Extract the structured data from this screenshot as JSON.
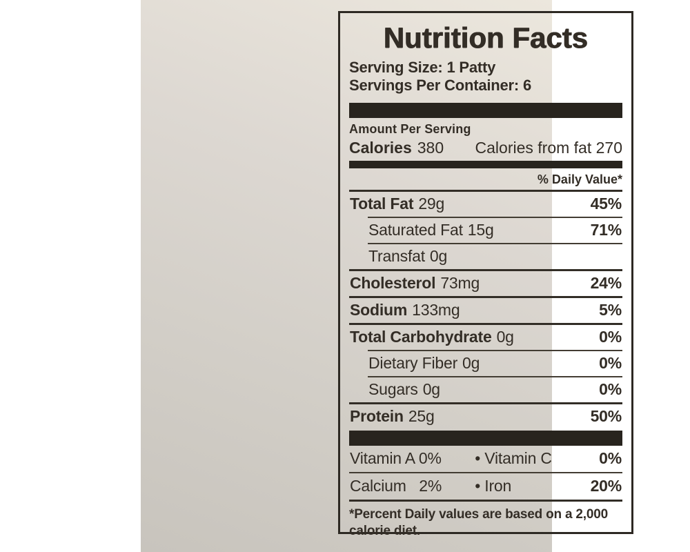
{
  "colors": {
    "paper_light": "#ece7dd",
    "paper_dark": "#c8c4bd",
    "ink": "#332d26",
    "bar": "#28241e",
    "page_background": "#ffffff"
  },
  "label": {
    "title": "Nutrition Facts",
    "serving_size": "Serving Size: 1 Patty",
    "servings_per_container": "Servings Per Container: 6",
    "amount_per_serving": "Amount Per Serving",
    "calories": {
      "label": "Calories",
      "value": "380",
      "from_fat": "Calories from fat 270"
    },
    "daily_value_header": "% Daily Value*",
    "nutrient_rows": [
      {
        "name": "Total Fat",
        "amount": "29g",
        "dv": "45%"
      },
      {
        "name": "Saturated Fat",
        "amount": "15g",
        "dv": "71%"
      },
      {
        "name": "Transfat",
        "amount": "0g",
        "dv": ""
      },
      {
        "name": "Cholesterol",
        "amount": "73mg",
        "dv": "24%"
      },
      {
        "name": "Sodium",
        "amount": "133mg",
        "dv": "5%"
      },
      {
        "name": "Total Carbohydrate",
        "amount": "0g",
        "dv": "0%"
      },
      {
        "name": "Dietary Fiber",
        "amount": "0g",
        "dv": "0%"
      },
      {
        "name": "Sugars",
        "amount": "0g",
        "dv": "0%"
      },
      {
        "name": "Protein",
        "amount": "25g",
        "dv": "50%"
      }
    ],
    "vitamin_rows": [
      {
        "left": "Vitamin A 0%",
        "mid": "• Vitamin C",
        "right": "0%"
      },
      {
        "left": "Calcium   2%",
        "mid": "• Iron",
        "right": "20%"
      }
    ],
    "footnote": "*Percent Daily values are based on a 2,000 calorie diet."
  }
}
